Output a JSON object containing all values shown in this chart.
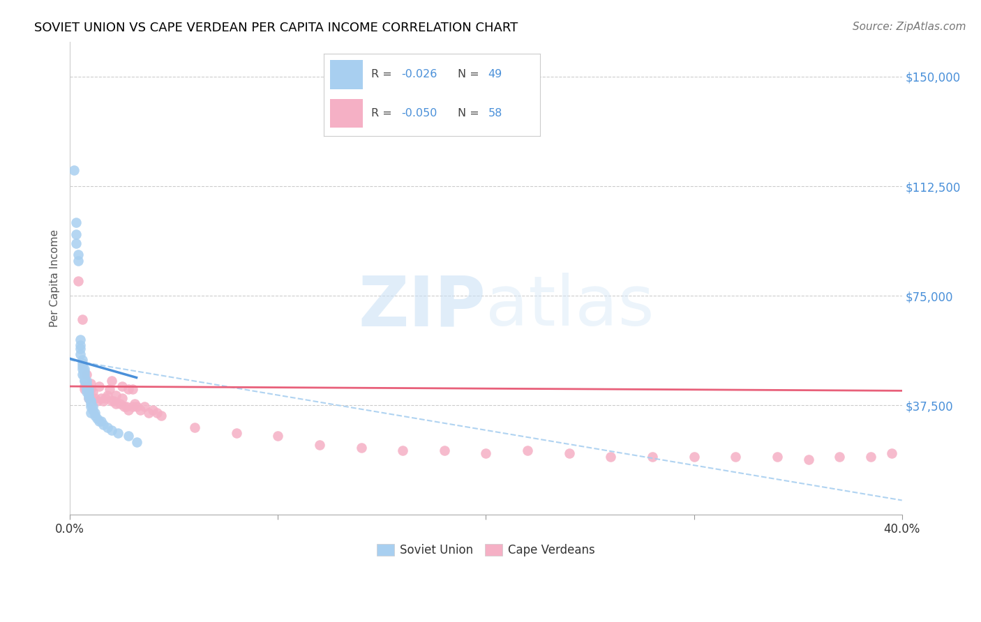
{
  "title": "SOVIET UNION VS CAPE VERDEAN PER CAPITA INCOME CORRELATION CHART",
  "source": "Source: ZipAtlas.com",
  "ylabel": "Per Capita Income",
  "xlim": [
    0.0,
    0.4
  ],
  "ylim": [
    0,
    162000
  ],
  "yticks": [
    37500,
    75000,
    112500,
    150000
  ],
  "ytick_labels": [
    "$37,500",
    "$75,000",
    "$112,500",
    "$150,000"
  ],
  "xticks": [
    0.0,
    0.1,
    0.2,
    0.3,
    0.4
  ],
  "xtick_labels": [
    "0.0%",
    "",
    "",
    "",
    "40.0%"
  ],
  "legend_label_soviet": "Soviet Union",
  "legend_label_cape": "Cape Verdeans",
  "watermark_zip": "ZIP",
  "watermark_atlas": "atlas",
  "soviet_color": "#a8cff0",
  "cape_color": "#f5b0c5",
  "soviet_line_color": "#4a90d9",
  "cape_line_color": "#e8607a",
  "dashed_line_color": "#a8cff0",
  "tick_color": "#4a90d9",
  "soviet_x": [
    0.002,
    0.003,
    0.003,
    0.003,
    0.004,
    0.004,
    0.005,
    0.005,
    0.005,
    0.005,
    0.006,
    0.006,
    0.006,
    0.006,
    0.007,
    0.007,
    0.007,
    0.007,
    0.007,
    0.008,
    0.008,
    0.008,
    0.008,
    0.009,
    0.009,
    0.009,
    0.009,
    0.009,
    0.01,
    0.01,
    0.01,
    0.01,
    0.011,
    0.011,
    0.012,
    0.012,
    0.013,
    0.014,
    0.015,
    0.016,
    0.018,
    0.02,
    0.023,
    0.028,
    0.032,
    0.006,
    0.007,
    0.008,
    0.01
  ],
  "soviet_y": [
    118000,
    100000,
    96000,
    93000,
    89000,
    87000,
    60000,
    58000,
    57000,
    55000,
    53000,
    52000,
    51000,
    50000,
    50000,
    49000,
    48000,
    47000,
    46000,
    46000,
    45000,
    44000,
    43000,
    43000,
    42000,
    41000,
    41000,
    40000,
    39000,
    39000,
    38000,
    37000,
    37000,
    36000,
    35000,
    34000,
    33000,
    32000,
    32000,
    31000,
    30000,
    29000,
    28000,
    27000,
    25000,
    48000,
    46000,
    42000,
    35000
  ],
  "cape_x": [
    0.004,
    0.006,
    0.007,
    0.007,
    0.008,
    0.009,
    0.01,
    0.01,
    0.011,
    0.012,
    0.013,
    0.014,
    0.015,
    0.016,
    0.017,
    0.018,
    0.019,
    0.02,
    0.021,
    0.022,
    0.024,
    0.025,
    0.026,
    0.027,
    0.028,
    0.03,
    0.031,
    0.032,
    0.034,
    0.036,
    0.038,
    0.04,
    0.042,
    0.044,
    0.06,
    0.08,
    0.1,
    0.12,
    0.14,
    0.16,
    0.18,
    0.2,
    0.22,
    0.24,
    0.26,
    0.28,
    0.3,
    0.32,
    0.34,
    0.355,
    0.37,
    0.385,
    0.395,
    0.02,
    0.025,
    0.03,
    0.028,
    0.022
  ],
  "cape_y": [
    80000,
    67000,
    44000,
    43000,
    48000,
    40000,
    45000,
    43000,
    42000,
    40000,
    39000,
    44000,
    40000,
    39000,
    40000,
    41000,
    43000,
    39000,
    39000,
    38000,
    38000,
    40000,
    37000,
    37000,
    36000,
    37000,
    38000,
    37000,
    36000,
    37000,
    35000,
    36000,
    35000,
    34000,
    30000,
    28000,
    27000,
    24000,
    23000,
    22000,
    22000,
    21000,
    22000,
    21000,
    20000,
    20000,
    20000,
    20000,
    20000,
    19000,
    20000,
    20000,
    21000,
    46000,
    44000,
    43000,
    43000,
    41000
  ],
  "soviet_line_x": [
    0.0,
    0.032
  ],
  "soviet_line_y": [
    53500,
    47000
  ],
  "cape_line_x": [
    0.0,
    0.4
  ],
  "cape_line_y": [
    44000,
    42500
  ],
  "dashed_line_x": [
    0.0,
    0.4
  ],
  "dashed_line_y": [
    53000,
    5000
  ]
}
